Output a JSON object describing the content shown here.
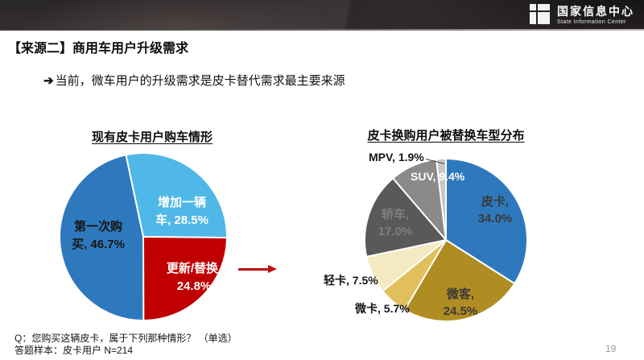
{
  "header": {
    "logo_cn": "国家信息中心",
    "logo_en": "State Information Center"
  },
  "page": {
    "title": "【来源二】商用车用户升级需求",
    "subtitle_arrow": "➔",
    "subtitle": "当前，微车用户的升级需求是皮卡替代需求最主要来源",
    "page_number": "19"
  },
  "footer": {
    "question": "Q：您购买这辆皮卡，属于下列那种情形？ （单选）",
    "sample": "答题样本：皮卡用户  N=214"
  },
  "colors": {
    "dark_blue": "#2E79BD",
    "light_blue": "#4FB8E8",
    "red": "#C00000",
    "gold_dark": "#AF8D22",
    "gold_mid": "#E0BF5C",
    "cream": "#F5E9C3",
    "gray_dark": "#595959",
    "gray_mid": "#8A8A8A",
    "gray_light": "#C7C7C7",
    "arrow_red": "#C01010"
  },
  "chart_data": [
    {
      "type": "pie",
      "title": "现有皮卡用户购车情形",
      "start_angle": -12,
      "legend_position": "none",
      "slices": [
        {
          "name": "增加一辆车",
          "value": 28.5,
          "color": "#4FB8E8",
          "label_lines": [
            "增加一辆",
            "车, 28.5%"
          ]
        },
        {
          "name": "更新/替换",
          "value": 24.8,
          "color": "#C00000",
          "label_lines": [
            "更新/替换,",
            "24.8%"
          ]
        },
        {
          "name": "第一次购买",
          "value": 46.7,
          "color": "#2E79BD",
          "label_lines": [
            "第一次购",
            "买, 46.7%"
          ]
        }
      ]
    },
    {
      "type": "pie",
      "title": "皮卡换购用户被替换车型分布",
      "start_angle": 0,
      "legend_position": "none",
      "slices": [
        {
          "name": "皮卡",
          "value": 34.0,
          "color": "#2E79BD",
          "label_lines": [
            "皮卡,",
            "34.0%"
          ]
        },
        {
          "name": "微客",
          "value": 24.5,
          "color": "#AF8D22",
          "label_lines": [
            "微客,",
            "24.5%"
          ]
        },
        {
          "name": "微卡",
          "value": 5.7,
          "color": "#E0BF5C",
          "label_lines": [
            "微卡, 5.7%"
          ]
        },
        {
          "name": "轻卡",
          "value": 7.5,
          "color": "#F5E9C3",
          "label_lines": [
            "轻卡, 7.5%"
          ]
        },
        {
          "name": "轿车",
          "value": 17.0,
          "color": "#595959",
          "label_lines": [
            "轿车,",
            "17.0%"
          ]
        },
        {
          "name": "SUV",
          "value": 9.4,
          "color": "#8A8A8A",
          "label_lines": [
            "SUV, 9.4%"
          ]
        },
        {
          "name": "MPV",
          "value": 1.9,
          "color": "#C7C7C7",
          "label_lines": [
            "MPV, 1.9%"
          ]
        }
      ]
    }
  ]
}
